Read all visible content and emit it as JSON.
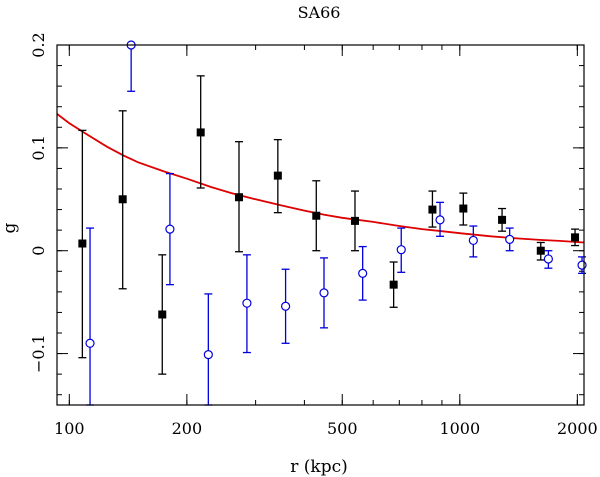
{
  "chart_data": {
    "type": "scatter",
    "title": "SA66",
    "xlabel": "r (kpc)",
    "ylabel": "g",
    "xscale": "log",
    "xlim": [
      93,
      2080
    ],
    "ylim": [
      -0.15,
      0.2
    ],
    "x_ticks": [
      {
        "value": 100,
        "label": "100"
      },
      {
        "value": 200,
        "label": "200"
      },
      {
        "value": 500,
        "label": "500"
      },
      {
        "value": 1000,
        "label": "1000"
      },
      {
        "value": 2000,
        "label": "2000"
      }
    ],
    "y_ticks": [
      {
        "value": -0.1,
        "label": "−0.1"
      },
      {
        "value": 0,
        "label": "0"
      },
      {
        "value": 0.1,
        "label": "0.1"
      },
      {
        "value": 0.2,
        "label": "0.2"
      }
    ],
    "series": [
      {
        "name": "filled-squares",
        "marker": "filled-square",
        "color": "#000000",
        "points": [
          {
            "x": 108,
            "y": 0.007,
            "lo": -0.104,
            "hi": 0.117
          },
          {
            "x": 137,
            "y": 0.05,
            "lo": -0.037,
            "hi": 0.136
          },
          {
            "x": 173,
            "y": -0.062,
            "lo": -0.12,
            "hi": -0.004
          },
          {
            "x": 217,
            "y": 0.115,
            "lo": 0.061,
            "hi": 0.17
          },
          {
            "x": 272,
            "y": 0.052,
            "lo": -0.001,
            "hi": 0.106
          },
          {
            "x": 342,
            "y": 0.073,
            "lo": 0.037,
            "hi": 0.108
          },
          {
            "x": 429,
            "y": 0.034,
            "lo": 0.0,
            "hi": 0.068
          },
          {
            "x": 539,
            "y": 0.029,
            "lo": 0.0,
            "hi": 0.058
          },
          {
            "x": 677,
            "y": -0.033,
            "lo": -0.055,
            "hi": -0.011
          },
          {
            "x": 851,
            "y": 0.04,
            "lo": 0.023,
            "hi": 0.058
          },
          {
            "x": 1021,
            "y": 0.041,
            "lo": 0.025,
            "hi": 0.056
          },
          {
            "x": 1283,
            "y": 0.03,
            "lo": 0.019,
            "hi": 0.041
          },
          {
            "x": 1612,
            "y": 0.0,
            "lo": -0.009,
            "hi": 0.008
          },
          {
            "x": 1973,
            "y": 0.013,
            "lo": 0.005,
            "hi": 0.021
          }
        ]
      },
      {
        "name": "open-circles",
        "marker": "open-circle",
        "color": "#0000dd",
        "points": [
          {
            "x": 113,
            "y": -0.09,
            "lo": -0.15,
            "hi": 0.022
          },
          {
            "x": 144,
            "y": 0.2,
            "lo": 0.155,
            "hi": 0.2
          },
          {
            "x": 181,
            "y": 0.021,
            "lo": -0.033,
            "hi": 0.075
          },
          {
            "x": 227,
            "y": -0.101,
            "lo": -0.15,
            "hi": -0.042
          },
          {
            "x": 285,
            "y": -0.051,
            "lo": -0.099,
            "hi": -0.004
          },
          {
            "x": 358,
            "y": -0.054,
            "lo": -0.09,
            "hi": -0.018
          },
          {
            "x": 449,
            "y": -0.041,
            "lo": -0.075,
            "hi": -0.007
          },
          {
            "x": 564,
            "y": -0.022,
            "lo": -0.048,
            "hi": 0.004
          },
          {
            "x": 708,
            "y": 0.001,
            "lo": -0.021,
            "hi": 0.022
          },
          {
            "x": 890,
            "y": 0.03,
            "lo": 0.014,
            "hi": 0.047
          },
          {
            "x": 1083,
            "y": 0.01,
            "lo": -0.006,
            "hi": 0.024
          },
          {
            "x": 1342,
            "y": 0.011,
            "lo": 0.0,
            "hi": 0.022
          },
          {
            "x": 1686,
            "y": -0.008,
            "lo": -0.017,
            "hi": 0.0
          },
          {
            "x": 2056,
            "y": -0.014,
            "lo": -0.022,
            "hi": -0.006
          }
        ]
      }
    ],
    "fit_curve": {
      "name": "model-fit",
      "color": "#dd0000",
      "x": [
        93,
        100,
        110,
        125,
        137,
        150,
        175,
        200,
        230,
        260,
        300,
        350,
        400,
        450,
        500,
        600,
        700,
        800,
        900,
        1000,
        1200,
        1400,
        1600,
        1800,
        2080
      ],
      "y": [
        0.133,
        0.124,
        0.114,
        0.101,
        0.093,
        0.086,
        0.077,
        0.07,
        0.062,
        0.056,
        0.05,
        0.044,
        0.039,
        0.035,
        0.032,
        0.028,
        0.024,
        0.021,
        0.019,
        0.017,
        0.014,
        0.012,
        0.0105,
        0.0095,
        0.008
      ]
    }
  }
}
